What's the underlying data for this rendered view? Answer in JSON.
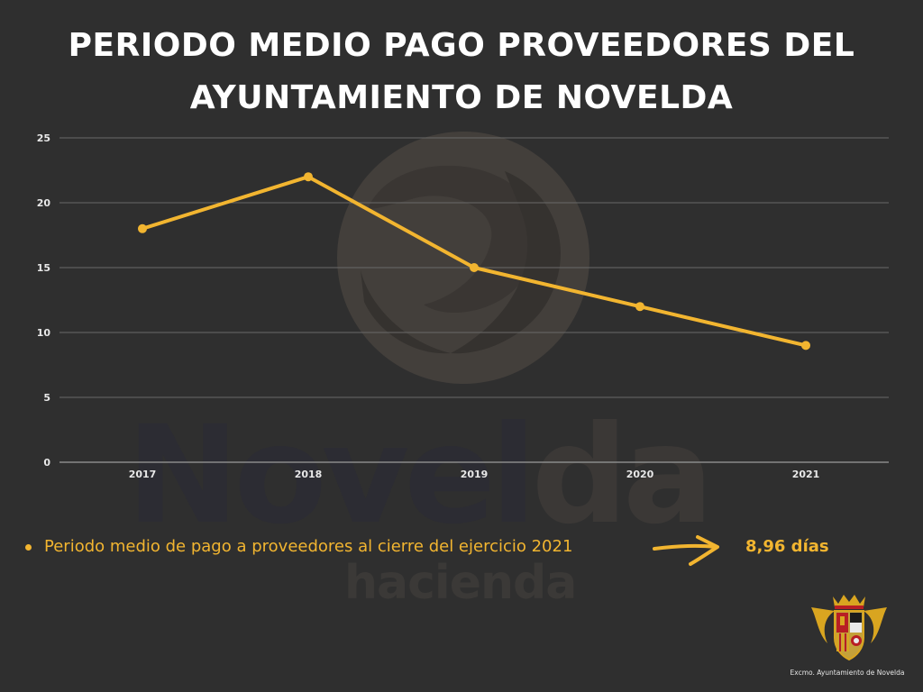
{
  "header": {
    "title_line1": "PERIODO MEDIO PAGO PROVEEDORES DEL",
    "title_line2": "AYUNTAMIENTO DE NOVELDA"
  },
  "watermark": {
    "word_part1": "Novel",
    "word_part2": "da",
    "subtitle": "hacienda"
  },
  "chart_data": {
    "type": "line",
    "x": [
      "2017",
      "2018",
      "2019",
      "2020",
      "2021"
    ],
    "series": [
      {
        "values": [
          18,
          22,
          15,
          12,
          9
        ]
      }
    ],
    "yticks": [
      0,
      5,
      10,
      15,
      20,
      25
    ],
    "ylim": [
      0,
      25
    ],
    "grid": true,
    "legend": "none",
    "line_color": "#f2b530",
    "grid_color": "#6a6a6a"
  },
  "note": {
    "text": "Periodo medio de pago a proveedores al cierre del ejercicio 2021",
    "value": "8,96 días",
    "color": "#f2b530"
  },
  "footer": {
    "crest_icon": "coat-of-arms-icon",
    "caption": "Excmo. Ayuntamiento de Novelda"
  }
}
